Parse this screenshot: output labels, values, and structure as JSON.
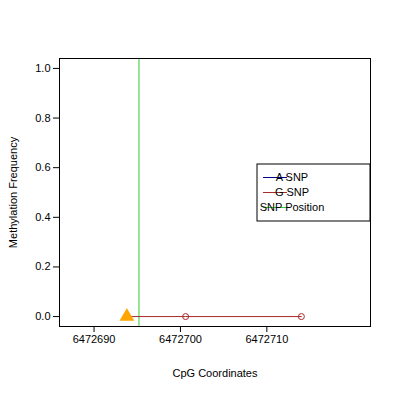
{
  "chart_data": {
    "type": "line",
    "x_label": "CpG Coordinates",
    "y_label": "Methylation Frequency",
    "xlim": [
      6472686,
      6472722
    ],
    "xticks": [
      6472690,
      6472700,
      6472710
    ],
    "ylim": [
      -0.04,
      1.04
    ],
    "yticks": [
      {
        "value": 0,
        "label": "0.0"
      },
      0.2,
      0.4,
      0.6,
      0.8,
      {
        "value": 1,
        "label": "1.0"
      }
    ],
    "series": [
      {
        "name": "A SNP",
        "color": "#00008b",
        "x": [],
        "values": [],
        "marker": "circle"
      },
      {
        "name": "G SNP",
        "color": "#a52a2a",
        "x": [
          6472693.8,
          6472700.6,
          6472714
        ],
        "values": [
          0,
          0,
          0
        ],
        "marker": "circle"
      }
    ],
    "markers": [
      {
        "x": 6472693.8,
        "y": 0,
        "color": "#ffa500",
        "marker": "triangle"
      }
    ],
    "vlines": [
      {
        "name": "SNP Position",
        "x": 6472695.2,
        "color": "#32cd32"
      }
    ],
    "legend": "right"
  }
}
